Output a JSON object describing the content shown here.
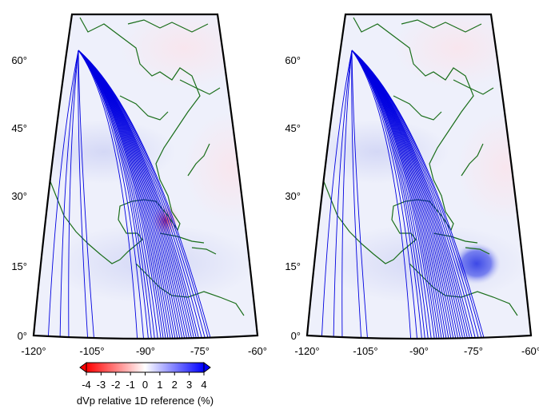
{
  "panels": [
    {
      "lat_labels": [
        "60°",
        "45°",
        "30°",
        "15°",
        "0°"
      ],
      "lon_labels": [
        "-120°",
        "-105°",
        "-90°",
        "-75°",
        "-60°"
      ]
    },
    {
      "lat_labels": [
        "60°",
        "45°",
        "30°",
        "15°",
        "0°"
      ],
      "lon_labels": [
        "-120°",
        "-105°",
        "-90°",
        "-75°",
        "-60°"
      ]
    }
  ],
  "colorbar": {
    "ticks": [
      -4,
      -3,
      -2,
      -1,
      0,
      1,
      2,
      3,
      4
    ],
    "label": "dVp relative 1D reference (%)"
  }
}
